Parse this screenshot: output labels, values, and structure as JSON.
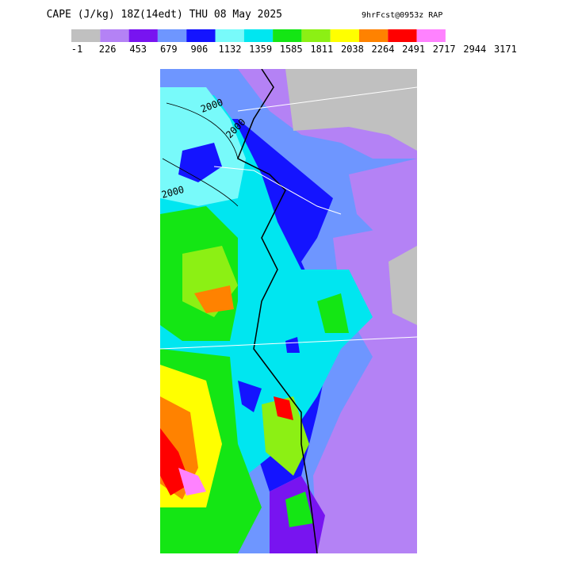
{
  "title": "CAPE (J/kg) 18Z(14edt) THU 08 May 2025",
  "subtitle": "9hrFcst@0953z RAP",
  "colorbar": {
    "colors": [
      "#c0c0c0",
      "#b482f5",
      "#7814f0",
      "#6e96ff",
      "#1414ff",
      "#78fafa",
      "#00e6f0",
      "#14e614",
      "#8cf014",
      "#ffff00",
      "#ff8200",
      "#ff0000",
      "#ff82ff"
    ],
    "labels": [
      -1,
      226,
      453,
      679,
      906,
      1132,
      1359,
      1585,
      1811,
      2038,
      2264,
      2491,
      2717,
      2944,
      3171
    ]
  },
  "contour_labels": [
    "2000",
    "2000",
    "2000"
  ]
}
